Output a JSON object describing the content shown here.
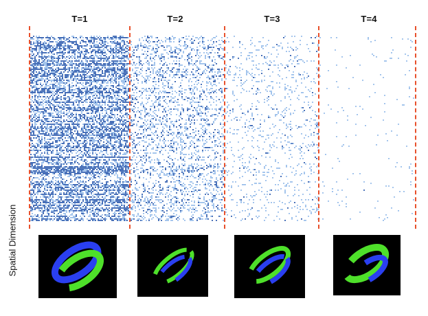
{
  "y_axis_label": "Spatial Dimension",
  "time_steps": [
    {
      "label": "T=1",
      "activity_level": 0.82
    },
    {
      "label": "T=2",
      "activity_level": 0.38
    },
    {
      "label": "T=3",
      "activity_level": 0.14
    },
    {
      "label": "T=4",
      "activity_level": 0.02
    }
  ],
  "colors": {
    "spike_dark": "#1f4fa8",
    "spike_light": "#8fb8e8",
    "divider": "#e8502b",
    "thumb_background": "#000000",
    "digit_green": "#4ee02a",
    "digit_blue": "#2a3ff0"
  },
  "thumbnails": [
    {
      "name": "digit-reconstruction-t1",
      "depicts": "green-blue ring"
    },
    {
      "name": "digit-reconstruction-t2",
      "depicts": "green-blue ring"
    },
    {
      "name": "digit-reconstruction-t3",
      "depicts": "green-blue ring"
    },
    {
      "name": "digit-reconstruction-t4",
      "depicts": "green-blue ring"
    }
  ]
}
